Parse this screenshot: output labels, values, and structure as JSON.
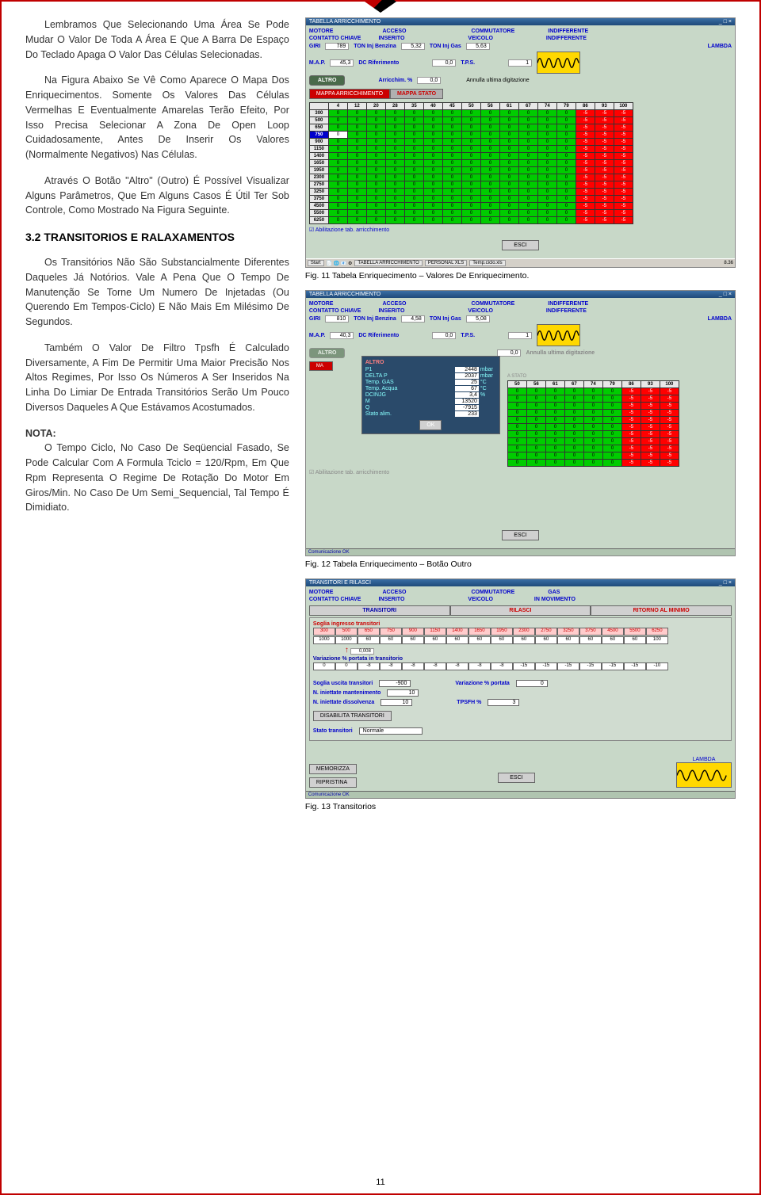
{
  "page_number": "11",
  "left": {
    "p1": "Lembramos Que Selecionando Uma Área Se Pode Mudar O Valor De Toda A Área E Que A Barra De Espaço Do Teclado Apaga O Valor Das Células Selecionadas.",
    "p2": "Na Figura Abaixo Se Vê Como Aparece O Mapa Dos Enriquecimentos. Somente Os Valores Das Células Vermelhas E Eventualmente Amarelas Terão Efeito, Por Isso Precisa Selecionar A Zona De Open Loop Cuidadosamente, Antes De Inserir Os Valores (Normalmente Negativos) Nas Células.",
    "p3": "Através O Botão \"Altro\" (Outro) É Possível Visualizar Alguns Parâmetros, Que Em Alguns Casos É Útil Ter Sob Controle, Como Mostrado Na Figura Seguinte.",
    "section_title": "3.2 TRANSITORIOS E RALAXAMENTOS",
    "p4": "Os Transitórios Não São Substancialmente Diferentes Daqueles Já Notórios. Vale A Pena Que O Tempo De Manutenção Se Torne Um Numero De Injetadas (Ou Querendo Em Tempos-Ciclo) E Não Mais Em Milésimo De Segundos.",
    "p5": "Também O Valor De Filtro Tpsfh É Calculado Diversamente, A Fim De Permitir Uma Maior Precisão Nos Altos Regimes, Por Isso Os Números A Ser Inseridos Na Linha Do Limiar De Entrada Transitórios Serão Um Pouco Diversos Daqueles A Que Estávamos Acostumados.",
    "note_label": "NOTA:",
    "p6": "O Tempo Ciclo, No Caso De Seqüencial Fasado, Se Pode Calcular Com A Formula Tciclo = 120/Rpm, Em Que Rpm Representa O Regime De Rotação Do Motor Em Giros/Min. No Caso De Um Semi_Sequencial, Tal Tempo É Dimidiato."
  },
  "captions": {
    "c1": "Fig. 11 Tabela Enriquecimento – Valores De Enriquecimento.",
    "c2": "Fig. 12 Tabela Enriquecimento – Botão Outro",
    "c3": "Fig. 13 Transitorios"
  },
  "shot1": {
    "title": "TABELLA ARRICCHIMENTO",
    "info": {
      "motore": "MOTORE",
      "acceso": "ACCESO",
      "comm": "COMMUTATORE",
      "indiff": "INDIFFERENTE",
      "chiave": "CONTATTO CHIAVE",
      "inserito": "INSERITO",
      "veicolo": "VEICOLO",
      "giri": "GIRI",
      "giri_v": "789",
      "ton_benz": "TON Inj Benzina",
      "ton_benz_v": "5,32",
      "ton_gas": "TON Inj Gas",
      "ton_gas_v": "5,63",
      "lambda": "LAMBDA",
      "map": "M.A.P.",
      "map_v": "45,3",
      "dc_rif": "DC Riferimento",
      "tps": "T.P.S.",
      "tps_v": "0,0",
      "one": "1",
      "arricchim": "Arricchim. %",
      "arr_v": "0,0",
      "annulla": "Annulla ultima digitazione"
    },
    "altro": "ALTRO",
    "tab_arr": "MAPPA ARRICCHIMENTO",
    "tab_stato": "MAPPA STATO",
    "col_headers": [
      "4",
      "12",
      "20",
      "28",
      "35",
      "40",
      "45",
      "50",
      "56",
      "61",
      "67",
      "74",
      "79",
      "86",
      "93",
      "100"
    ],
    "row_headers": [
      "300",
      "500",
      "650",
      "750",
      "900",
      "1150",
      "1400",
      "1650",
      "1950",
      "2300",
      "2750",
      "3250",
      "3750",
      "4500",
      "5500",
      "6250"
    ],
    "abil": "Abilitazione tab. arricchimento",
    "esci": "ESCI",
    "taskbar_start": "Start",
    "taskbar_items": [
      "TABELLA ARRICCHIMENTO",
      "PERSONAL XLS",
      "Temp.ciclo.xls"
    ],
    "taskbar_time": "8.36"
  },
  "shot2": {
    "title": "TABELLA ARRICCHIMENTO",
    "giri_v": "810",
    "ton_benz_v": "4,58",
    "ton_gas_v": "5,08",
    "map_v": "40,3",
    "tps_v": "0,0",
    "arr_v": "0,0",
    "altro": "ALTRO",
    "tooltip": {
      "title": "ALTRO",
      "rows": [
        {
          "l": "P1",
          "v": "2448",
          "u": "mbar"
        },
        {
          "l": "DELTA P",
          "v": "2037",
          "u": "mbar"
        },
        {
          "l": "Temp. GAS",
          "v": "25",
          "u": "°C"
        },
        {
          "l": "Temp. Acqua",
          "v": "67",
          "u": "°C"
        },
        {
          "l": "DCINJG",
          "v": "3,4",
          "u": "%"
        },
        {
          "l": "M",
          "v": "13520",
          "u": ""
        },
        {
          "l": "Q",
          "v": "-7915",
          "u": ""
        },
        {
          "l": "Stato alim.",
          "v": "233",
          "u": ""
        }
      ],
      "ok": "OK"
    },
    "col_headers_partial": [
      "50",
      "56",
      "61",
      "67",
      "74",
      "79",
      "86",
      "93",
      "100"
    ],
    "comm": "Comunicazione OK"
  },
  "shot3": {
    "title": "TRANSITORI E RILASCI",
    "info": {
      "comm_v": "GAS",
      "veic_v": "IN MOVIMENTO"
    },
    "tabs": {
      "t1": "TRANSITORI",
      "t2": "RILASCI",
      "t3": "RITORNO AL MINIMO"
    },
    "soglia_label": "Soglia ingresso transitori",
    "soglia_hdr": [
      "300",
      "500",
      "650",
      "750",
      "900",
      "1150",
      "1400",
      "1650",
      "1950",
      "2300",
      "2750",
      "3250",
      "3750",
      "4500",
      "5500",
      "6250"
    ],
    "soglia_vals": [
      "1000",
      "1000",
      "60",
      "60",
      "60",
      "60",
      "60",
      "60",
      "60",
      "60",
      "60",
      "60",
      "60",
      "60",
      "60",
      "100"
    ],
    "sel_val": "0,008",
    "var_label": "Variazione % portata in transitorio",
    "var_vals": [
      "0",
      "0",
      "-8",
      "-8",
      "-8",
      "-8",
      "-8",
      "-8",
      "-8",
      "-15",
      "-15",
      "-15",
      "-15",
      "-15",
      "-15",
      "-10"
    ],
    "fields": {
      "soglia_uscita": "Soglia uscita transitori",
      "soglia_uscita_v": "-900",
      "var_port": "Variazione % portata",
      "var_port_v": "0",
      "n_mant": "N. iniettate mantenimento",
      "n_mant_v": "10",
      "n_diss": "N. iniettate dissolvenza",
      "n_diss_v": "10",
      "tpsfh": "TPSFH %",
      "tpsfh_v": "3"
    },
    "disabilita": "DISABILITA TRANSITORI",
    "stato": "Stato transitori",
    "stato_v": "Normale",
    "memorizza": "MEMORIZZA",
    "ripristina": "RIPRISTINA",
    "esci": "ESCI",
    "lambda": "LAMBDA",
    "comm": "Comunicazione OK"
  }
}
